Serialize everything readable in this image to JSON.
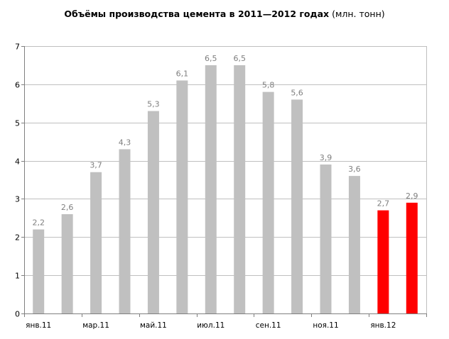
{
  "chart_data": {
    "type": "bar",
    "title": "Объёмы производства цемента в 2011—2012 годах",
    "title_unit": "(млн. тонн)",
    "xlabel": "",
    "ylabel": "",
    "ylim": [
      0,
      7
    ],
    "yticks": [
      "0",
      "1",
      "2",
      "3",
      "4",
      "5",
      "6",
      "7"
    ],
    "grid": true,
    "values": [
      2.2,
      2.6,
      3.7,
      4.3,
      5.3,
      6.1,
      6.5,
      6.5,
      5.8,
      5.6,
      3.9,
      3.6,
      2.7,
      2.9
    ],
    "value_labels": [
      "2,2",
      "2,6",
      "3,7",
      "4,3",
      "5,3",
      "6,1",
      "6,5",
      "6,5",
      "5,8",
      "5,6",
      "3,9",
      "3,6",
      "2,7",
      "2,9"
    ],
    "category_labels": [
      "янв.11",
      "",
      "мар.11",
      "",
      "май.11",
      "",
      "июл.11",
      "",
      "сен.11",
      "",
      "ноя.11",
      "",
      "янв.12",
      ""
    ],
    "colors": [
      "#c0c0c0",
      "#c0c0c0",
      "#c0c0c0",
      "#c0c0c0",
      "#c0c0c0",
      "#c0c0c0",
      "#c0c0c0",
      "#c0c0c0",
      "#c0c0c0",
      "#c0c0c0",
      "#c0c0c0",
      "#c0c0c0",
      "#ff0000",
      "#ff0000"
    ],
    "label_color": "#7f7f7f",
    "grid_color": "#bfbfbf"
  }
}
